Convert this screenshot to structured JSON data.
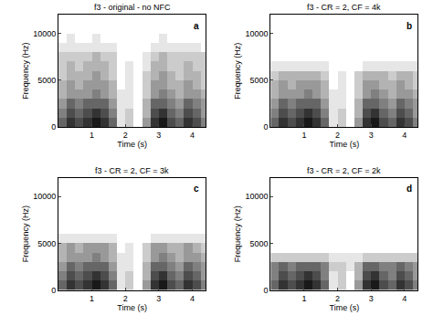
{
  "chart_data": [
    {
      "type": "heatmap",
      "title": "f3 - original - no NFC",
      "annotation": "a",
      "x_label": "Time (s)",
      "y_label": "Frequency (Hz)",
      "xlim": [
        0,
        4.4
      ],
      "xticks": [
        1,
        2,
        3,
        4
      ],
      "ylim": [
        0,
        12000
      ],
      "yticks": [
        0,
        5000,
        10000
      ],
      "grid": false,
      "zlim": [
        0,
        1
      ],
      "x": [
        0.125,
        0.375,
        0.625,
        0.875,
        1.125,
        1.375,
        1.625,
        1.875,
        2.125,
        2.375,
        2.625,
        2.875,
        3.125,
        3.375,
        3.625,
        3.875,
        4.125,
        4.375
      ],
      "y": [
        500,
        1500,
        2500,
        3500,
        4500,
        5500,
        6500,
        7500,
        8500,
        9500,
        10500,
        11500
      ],
      "z": [
        [
          0.6,
          0.8,
          0.7,
          0.8,
          0.9,
          0.8,
          0.6,
          0.1,
          0.2,
          0.0,
          0.4,
          0.8,
          0.9,
          0.7,
          0.6,
          0.8,
          0.7,
          0.5
        ],
        [
          0.5,
          0.7,
          0.6,
          0.7,
          0.8,
          0.7,
          0.5,
          0.1,
          0.2,
          0.0,
          0.3,
          0.7,
          0.8,
          0.6,
          0.5,
          0.7,
          0.6,
          0.4
        ],
        [
          0.4,
          0.6,
          0.5,
          0.6,
          0.6,
          0.6,
          0.4,
          0.1,
          0.1,
          0.0,
          0.3,
          0.6,
          0.6,
          0.5,
          0.4,
          0.6,
          0.5,
          0.4
        ],
        [
          0.3,
          0.4,
          0.4,
          0.4,
          0.5,
          0.4,
          0.3,
          0.1,
          0.1,
          0.0,
          0.2,
          0.4,
          0.5,
          0.4,
          0.3,
          0.4,
          0.4,
          0.3
        ],
        [
          0.3,
          0.4,
          0.3,
          0.4,
          0.4,
          0.4,
          0.3,
          0.0,
          0.1,
          0.0,
          0.2,
          0.4,
          0.4,
          0.3,
          0.3,
          0.4,
          0.3,
          0.2
        ],
        [
          0.2,
          0.3,
          0.3,
          0.3,
          0.4,
          0.3,
          0.2,
          0.0,
          0.1,
          0.0,
          0.2,
          0.3,
          0.4,
          0.3,
          0.2,
          0.3,
          0.3,
          0.2
        ],
        [
          0.2,
          0.3,
          0.2,
          0.3,
          0.3,
          0.3,
          0.2,
          0.0,
          0.1,
          0.0,
          0.1,
          0.3,
          0.3,
          0.2,
          0.2,
          0.3,
          0.2,
          0.2
        ],
        [
          0.2,
          0.2,
          0.2,
          0.2,
          0.3,
          0.2,
          0.2,
          0.0,
          0.0,
          0.0,
          0.1,
          0.2,
          0.3,
          0.2,
          0.2,
          0.2,
          0.2,
          0.2
        ],
        [
          0.1,
          0.1,
          0.1,
          0.1,
          0.1,
          0.1,
          0.1,
          0.0,
          0.0,
          0.0,
          0.0,
          0.1,
          0.1,
          0.1,
          0.1,
          0.1,
          0.1,
          0.0
        ],
        [
          0.0,
          0.1,
          0.0,
          0.0,
          0.1,
          0.0,
          0.0,
          0.0,
          0.0,
          0.0,
          0.0,
          0.0,
          0.1,
          0.0,
          0.0,
          0.0,
          0.0,
          0.0
        ],
        [
          0.0,
          0.0,
          0.0,
          0.0,
          0.0,
          0.0,
          0.0,
          0.0,
          0.0,
          0.0,
          0.0,
          0.0,
          0.0,
          0.0,
          0.0,
          0.0,
          0.0,
          0.0
        ],
        [
          0.0,
          0.0,
          0.0,
          0.0,
          0.0,
          0.0,
          0.0,
          0.0,
          0.0,
          0.0,
          0.0,
          0.0,
          0.0,
          0.0,
          0.0,
          0.0,
          0.0,
          0.0
        ]
      ]
    },
    {
      "type": "heatmap",
      "title": "f3 - CR = 2, CF = 4k",
      "annotation": "b",
      "x_label": "Time (s)",
      "y_label": "Frequency (Hz)",
      "xlim": [
        0,
        4.4
      ],
      "xticks": [
        1,
        2,
        3,
        4
      ],
      "ylim": [
        0,
        12000
      ],
      "yticks": [
        0,
        5000,
        10000
      ],
      "grid": false,
      "zlim": [
        0,
        1
      ],
      "x": [
        0.125,
        0.375,
        0.625,
        0.875,
        1.125,
        1.375,
        1.625,
        1.875,
        2.125,
        2.375,
        2.625,
        2.875,
        3.125,
        3.375,
        3.625,
        3.875,
        4.125,
        4.375
      ],
      "y": [
        500,
        1500,
        2500,
        3500,
        4500,
        5500,
        6500,
        7500,
        8500,
        9500,
        10500,
        11500
      ],
      "z": [
        [
          0.6,
          0.8,
          0.7,
          0.8,
          0.9,
          0.8,
          0.6,
          0.1,
          0.2,
          0.0,
          0.4,
          0.8,
          0.9,
          0.7,
          0.6,
          0.8,
          0.7,
          0.5
        ],
        [
          0.5,
          0.7,
          0.6,
          0.7,
          0.8,
          0.7,
          0.5,
          0.1,
          0.2,
          0.0,
          0.3,
          0.7,
          0.8,
          0.6,
          0.5,
          0.7,
          0.6,
          0.4
        ],
        [
          0.4,
          0.6,
          0.5,
          0.6,
          0.6,
          0.6,
          0.4,
          0.1,
          0.1,
          0.0,
          0.3,
          0.6,
          0.6,
          0.5,
          0.4,
          0.6,
          0.5,
          0.4
        ],
        [
          0.3,
          0.4,
          0.4,
          0.4,
          0.5,
          0.4,
          0.3,
          0.1,
          0.1,
          0.0,
          0.2,
          0.4,
          0.5,
          0.4,
          0.3,
          0.4,
          0.4,
          0.3
        ],
        [
          0.3,
          0.4,
          0.3,
          0.4,
          0.4,
          0.4,
          0.3,
          0.0,
          0.1,
          0.0,
          0.2,
          0.4,
          0.4,
          0.3,
          0.3,
          0.4,
          0.3,
          0.2
        ],
        [
          0.2,
          0.3,
          0.3,
          0.3,
          0.3,
          0.3,
          0.2,
          0.0,
          0.1,
          0.0,
          0.2,
          0.3,
          0.3,
          0.3,
          0.2,
          0.3,
          0.3,
          0.2
        ],
        [
          0.1,
          0.1,
          0.1,
          0.1,
          0.1,
          0.1,
          0.1,
          0.0,
          0.0,
          0.0,
          0.0,
          0.1,
          0.1,
          0.1,
          0.1,
          0.1,
          0.1,
          0.1
        ],
        [
          0.0,
          0.0,
          0.0,
          0.0,
          0.0,
          0.0,
          0.0,
          0.0,
          0.0,
          0.0,
          0.0,
          0.0,
          0.0,
          0.0,
          0.0,
          0.0,
          0.0,
          0.0
        ],
        [
          0.0,
          0.0,
          0.0,
          0.0,
          0.0,
          0.0,
          0.0,
          0.0,
          0.0,
          0.0,
          0.0,
          0.0,
          0.0,
          0.0,
          0.0,
          0.0,
          0.0,
          0.0
        ],
        [
          0.0,
          0.0,
          0.0,
          0.0,
          0.0,
          0.0,
          0.0,
          0.0,
          0.0,
          0.0,
          0.0,
          0.0,
          0.0,
          0.0,
          0.0,
          0.0,
          0.0,
          0.0
        ],
        [
          0.0,
          0.0,
          0.0,
          0.0,
          0.0,
          0.0,
          0.0,
          0.0,
          0.0,
          0.0,
          0.0,
          0.0,
          0.0,
          0.0,
          0.0,
          0.0,
          0.0,
          0.0
        ],
        [
          0.0,
          0.0,
          0.0,
          0.0,
          0.0,
          0.0,
          0.0,
          0.0,
          0.0,
          0.0,
          0.0,
          0.0,
          0.0,
          0.0,
          0.0,
          0.0,
          0.0,
          0.0
        ]
      ]
    },
    {
      "type": "heatmap",
      "title": "f3 - CR = 2, CF = 3k",
      "annotation": "c",
      "x_label": "Time (s)",
      "y_label": "Frequency (Hz)",
      "xlim": [
        0,
        4.4
      ],
      "xticks": [
        1,
        2,
        3,
        4
      ],
      "ylim": [
        0,
        12000
      ],
      "yticks": [
        0,
        5000,
        10000
      ],
      "grid": false,
      "zlim": [
        0,
        1
      ],
      "x": [
        0.125,
        0.375,
        0.625,
        0.875,
        1.125,
        1.375,
        1.625,
        1.875,
        2.125,
        2.375,
        2.625,
        2.875,
        3.125,
        3.375,
        3.625,
        3.875,
        4.125,
        4.375
      ],
      "y": [
        500,
        1500,
        2500,
        3500,
        4500,
        5500,
        6500,
        7500,
        8500,
        9500,
        10500,
        11500
      ],
      "z": [
        [
          0.6,
          0.8,
          0.7,
          0.8,
          0.9,
          0.8,
          0.6,
          0.1,
          0.2,
          0.0,
          0.4,
          0.8,
          0.9,
          0.7,
          0.6,
          0.8,
          0.7,
          0.5
        ],
        [
          0.5,
          0.7,
          0.6,
          0.7,
          0.8,
          0.7,
          0.5,
          0.1,
          0.2,
          0.0,
          0.3,
          0.7,
          0.8,
          0.6,
          0.5,
          0.7,
          0.6,
          0.4
        ],
        [
          0.4,
          0.6,
          0.5,
          0.6,
          0.6,
          0.6,
          0.4,
          0.1,
          0.1,
          0.0,
          0.3,
          0.6,
          0.6,
          0.5,
          0.4,
          0.6,
          0.5,
          0.4
        ],
        [
          0.3,
          0.4,
          0.4,
          0.4,
          0.5,
          0.4,
          0.3,
          0.1,
          0.1,
          0.0,
          0.2,
          0.4,
          0.5,
          0.4,
          0.3,
          0.4,
          0.4,
          0.3
        ],
        [
          0.3,
          0.4,
          0.3,
          0.4,
          0.4,
          0.4,
          0.3,
          0.0,
          0.1,
          0.0,
          0.2,
          0.4,
          0.4,
          0.3,
          0.3,
          0.4,
          0.3,
          0.2
        ],
        [
          0.1,
          0.1,
          0.1,
          0.1,
          0.1,
          0.1,
          0.1,
          0.0,
          0.0,
          0.0,
          0.0,
          0.1,
          0.1,
          0.1,
          0.1,
          0.1,
          0.1,
          0.1
        ],
        [
          0.0,
          0.0,
          0.0,
          0.0,
          0.0,
          0.0,
          0.0,
          0.0,
          0.0,
          0.0,
          0.0,
          0.0,
          0.0,
          0.0,
          0.0,
          0.0,
          0.0,
          0.0
        ],
        [
          0.0,
          0.0,
          0.0,
          0.0,
          0.0,
          0.0,
          0.0,
          0.0,
          0.0,
          0.0,
          0.0,
          0.0,
          0.0,
          0.0,
          0.0,
          0.0,
          0.0,
          0.0
        ],
        [
          0.0,
          0.0,
          0.0,
          0.0,
          0.0,
          0.0,
          0.0,
          0.0,
          0.0,
          0.0,
          0.0,
          0.0,
          0.0,
          0.0,
          0.0,
          0.0,
          0.0,
          0.0
        ],
        [
          0.0,
          0.0,
          0.0,
          0.0,
          0.0,
          0.0,
          0.0,
          0.0,
          0.0,
          0.0,
          0.0,
          0.0,
          0.0,
          0.0,
          0.0,
          0.0,
          0.0,
          0.0
        ],
        [
          0.0,
          0.0,
          0.0,
          0.0,
          0.0,
          0.0,
          0.0,
          0.0,
          0.0,
          0.0,
          0.0,
          0.0,
          0.0,
          0.0,
          0.0,
          0.0,
          0.0,
          0.0
        ],
        [
          0.0,
          0.0,
          0.0,
          0.0,
          0.0,
          0.0,
          0.0,
          0.0,
          0.0,
          0.0,
          0.0,
          0.0,
          0.0,
          0.0,
          0.0,
          0.0,
          0.0,
          0.0
        ]
      ]
    },
    {
      "type": "heatmap",
      "title": "f3 - CR = 2, CF = 2k",
      "annotation": "d",
      "x_label": "Time (s)",
      "y_label": "Frequency (Hz)",
      "xlim": [
        0,
        4.4
      ],
      "xticks": [
        1,
        2,
        3,
        4
      ],
      "ylim": [
        0,
        12000
      ],
      "yticks": [
        0,
        5000,
        10000
      ],
      "grid": false,
      "zlim": [
        0,
        1
      ],
      "x": [
        0.125,
        0.375,
        0.625,
        0.875,
        1.125,
        1.375,
        1.625,
        1.875,
        2.125,
        2.375,
        2.625,
        2.875,
        3.125,
        3.375,
        3.625,
        3.875,
        4.125,
        4.375
      ],
      "y": [
        500,
        1500,
        2500,
        3500,
        4500,
        5500,
        6500,
        7500,
        8500,
        9500,
        10500,
        11500
      ],
      "z": [
        [
          0.6,
          0.8,
          0.7,
          0.8,
          0.9,
          0.8,
          0.6,
          0.1,
          0.2,
          0.0,
          0.4,
          0.8,
          0.9,
          0.7,
          0.6,
          0.8,
          0.7,
          0.5
        ],
        [
          0.5,
          0.7,
          0.6,
          0.7,
          0.8,
          0.7,
          0.5,
          0.1,
          0.2,
          0.0,
          0.3,
          0.7,
          0.8,
          0.6,
          0.5,
          0.7,
          0.6,
          0.4
        ],
        [
          0.5,
          0.6,
          0.5,
          0.6,
          0.6,
          0.6,
          0.5,
          0.2,
          0.2,
          0.1,
          0.3,
          0.6,
          0.6,
          0.5,
          0.5,
          0.6,
          0.5,
          0.4
        ],
        [
          0.2,
          0.2,
          0.2,
          0.2,
          0.2,
          0.2,
          0.2,
          0.1,
          0.1,
          0.1,
          0.1,
          0.2,
          0.2,
          0.2,
          0.2,
          0.2,
          0.2,
          0.2
        ],
        [
          0.0,
          0.0,
          0.0,
          0.0,
          0.0,
          0.0,
          0.0,
          0.0,
          0.0,
          0.0,
          0.0,
          0.0,
          0.0,
          0.0,
          0.0,
          0.0,
          0.0,
          0.0
        ],
        [
          0.0,
          0.0,
          0.0,
          0.0,
          0.0,
          0.0,
          0.0,
          0.0,
          0.0,
          0.0,
          0.0,
          0.0,
          0.0,
          0.0,
          0.0,
          0.0,
          0.0,
          0.0
        ],
        [
          0.0,
          0.0,
          0.0,
          0.0,
          0.0,
          0.0,
          0.0,
          0.0,
          0.0,
          0.0,
          0.0,
          0.0,
          0.0,
          0.0,
          0.0,
          0.0,
          0.0,
          0.0
        ],
        [
          0.0,
          0.0,
          0.0,
          0.0,
          0.0,
          0.0,
          0.0,
          0.0,
          0.0,
          0.0,
          0.0,
          0.0,
          0.0,
          0.0,
          0.0,
          0.0,
          0.0,
          0.0
        ],
        [
          0.0,
          0.0,
          0.0,
          0.0,
          0.0,
          0.0,
          0.0,
          0.0,
          0.0,
          0.0,
          0.0,
          0.0,
          0.0,
          0.0,
          0.0,
          0.0,
          0.0,
          0.0
        ],
        [
          0.0,
          0.0,
          0.0,
          0.0,
          0.0,
          0.0,
          0.0,
          0.0,
          0.0,
          0.0,
          0.0,
          0.0,
          0.0,
          0.0,
          0.0,
          0.0,
          0.0,
          0.0
        ],
        [
          0.0,
          0.0,
          0.0,
          0.0,
          0.0,
          0.0,
          0.0,
          0.0,
          0.0,
          0.0,
          0.0,
          0.0,
          0.0,
          0.0,
          0.0,
          0.0,
          0.0,
          0.0
        ],
        [
          0.0,
          0.0,
          0.0,
          0.0,
          0.0,
          0.0,
          0.0,
          0.0,
          0.0,
          0.0,
          0.0,
          0.0,
          0.0,
          0.0,
          0.0,
          0.0,
          0.0,
          0.0
        ]
      ]
    }
  ]
}
